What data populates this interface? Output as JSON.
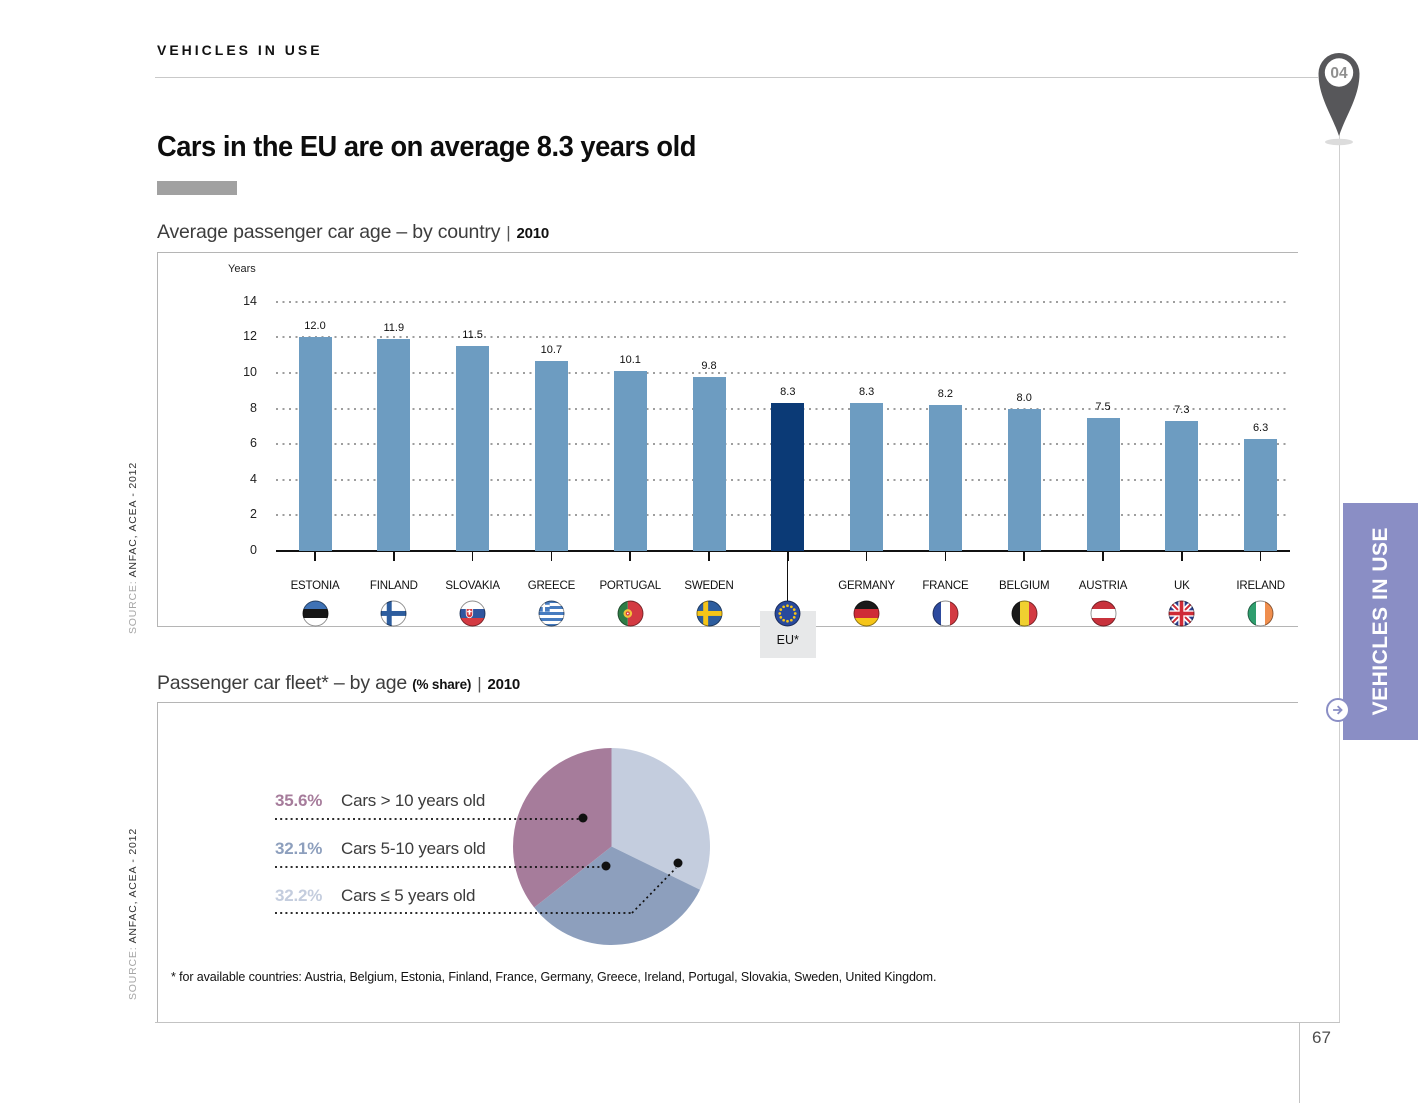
{
  "page": {
    "kicker": "VEHICLES IN USE",
    "headline": "Cars in the EU are on average 8.3 years old",
    "side_tab_label": "VEHICLES IN USE",
    "section_number": "04",
    "page_number": "67",
    "source_label": "SOURCE:",
    "source_value": "ANFAC, ACEA - 2012",
    "footnote": "* for available countries: Austria, Belgium, Estonia, Finland, France, Germany, Greece, Ireland, Portugal, Slovakia, Sweden, United Kingdom."
  },
  "chart1_header": {
    "title": "Average passenger car age – by country",
    "separator": "|",
    "year": "2010"
  },
  "chart2_header": {
    "title": "Passenger car fleet* – by age",
    "share_note": "(% share)",
    "separator": "|",
    "year": "2010"
  },
  "chart_data": [
    {
      "type": "bar",
      "title": "Average passenger car age – by country | 2010",
      "ylabel": "Years",
      "ylim": [
        0,
        14
      ],
      "yticks": [
        0,
        2,
        4,
        6,
        8,
        10,
        12,
        14
      ],
      "grid": "horizontal-dotted",
      "categories": [
        "ESTONIA",
        "FINLAND",
        "SLOVAKIA",
        "GREECE",
        "PORTUGAL",
        "SWEDEN",
        "EU*",
        "GERMANY",
        "FRANCE",
        "BELGIUM",
        "AUSTRIA",
        "UK",
        "IRELAND"
      ],
      "values": [
        12.0,
        11.9,
        11.5,
        10.7,
        10.1,
        9.8,
        8.3,
        8.3,
        8.2,
        8.0,
        7.5,
        7.3,
        6.3
      ],
      "flags": [
        "estonia",
        "finland",
        "slovakia",
        "greece",
        "portugal",
        "sweden",
        "eu",
        "germany",
        "france",
        "belgium",
        "austria",
        "uk",
        "ireland"
      ],
      "bar_color": "#6d9cc1",
      "highlight_index": 6,
      "highlight_color": "#0b3a76",
      "highlight_label": "EU*"
    },
    {
      "type": "pie",
      "title": "Passenger car fleet* – by age (% share) | 2010",
      "legend_position": "left",
      "slices": [
        {
          "label": "Cars > 10 years old",
          "value": 35.6,
          "color": "#a67c9b"
        },
        {
          "label": "Cars 5-10 years old",
          "value": 32.1,
          "color": "#8d9fbd"
        },
        {
          "label": "Cars ≤ 5 years old",
          "value": 32.2,
          "color": "#c4cdde"
        }
      ]
    }
  ]
}
